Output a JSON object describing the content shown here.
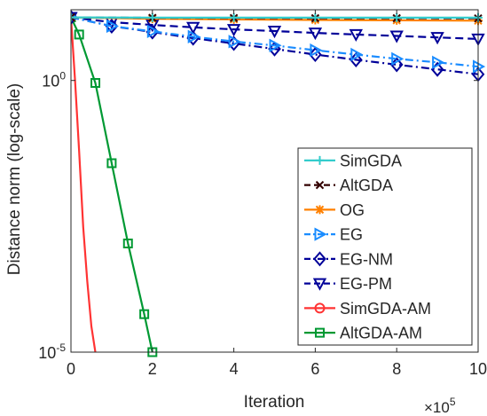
{
  "chart_data": {
    "type": "line",
    "title": "",
    "xlabel": "Iteration",
    "ylabel": "Distance norm (log-scale)",
    "x_exponent_label": "×10",
    "x_exponent_power": "5",
    "x_scale_factor": 100000,
    "xlim": [
      0,
      1000000
    ],
    "ylim": [
      1e-05,
      20
    ],
    "yscale": "log",
    "x_ticks": [
      {
        "value": 0,
        "label": "0"
      },
      {
        "value": 200000,
        "label": "2"
      },
      {
        "value": 400000,
        "label": "4"
      },
      {
        "value": 600000,
        "label": "6"
      },
      {
        "value": 800000,
        "label": "8"
      },
      {
        "value": 1000000,
        "label": "10"
      }
    ],
    "y_ticks": [
      {
        "value": 1,
        "base": "10",
        "power": "0"
      },
      {
        "value": 1e-05,
        "base": "10",
        "power": "-5"
      }
    ],
    "grid": false,
    "legend_position": "bottom-right",
    "series": [
      {
        "name": "SimGDA",
        "color": "#33cccc",
        "dash": "solid",
        "marker": "plus",
        "x": [
          0,
          200000,
          400000,
          600000,
          800000,
          1000000
        ],
        "y": [
          14.5,
          14.3,
          14.3,
          14.3,
          14.3,
          14.3
        ]
      },
      {
        "name": "AltGDA",
        "color": "#330000",
        "dash": "dashed",
        "marker": "x",
        "x": [
          0,
          200000,
          400000,
          600000,
          800000,
          1000000
        ],
        "y": [
          14.5,
          14.2,
          14.1,
          14.0,
          14.0,
          13.9
        ]
      },
      {
        "name": "OG",
        "color": "#ff8000",
        "dash": "solid",
        "marker": "asterisk",
        "x": [
          0,
          200000,
          400000,
          600000,
          800000,
          1000000
        ],
        "y": [
          14.5,
          13.7,
          13.3,
          13.0,
          12.8,
          12.6
        ]
      },
      {
        "name": "EG",
        "color": "#1a8cff",
        "dash": "dashdot",
        "marker": "triangle-right",
        "x": [
          0,
          100000,
          200000,
          300000,
          400000,
          500000,
          600000,
          700000,
          800000,
          900000,
          1000000
        ],
        "y": [
          14.5,
          10.0,
          8.0,
          6.4,
          5.2,
          4.4,
          3.6,
          3.0,
          2.5,
          2.15,
          1.8
        ]
      },
      {
        "name": "EG-NM",
        "color": "#000099",
        "dash": "dashdot",
        "marker": "diamond",
        "x": [
          0,
          100000,
          200000,
          300000,
          400000,
          500000,
          600000,
          700000,
          800000,
          900000,
          1000000
        ],
        "y": [
          14.5,
          10.0,
          7.8,
          6.0,
          4.8,
          3.8,
          3.0,
          2.4,
          1.95,
          1.6,
          1.3
        ]
      },
      {
        "name": "EG-PM",
        "color": "#000099",
        "dash": "dashed",
        "marker": "triangle-down",
        "x": [
          0,
          100000,
          200000,
          300000,
          400000,
          500000,
          600000,
          700000,
          800000,
          900000,
          1000000
        ],
        "y": [
          14.5,
          11.8,
          10.5,
          9.5,
          8.7,
          8.1,
          7.5,
          7.0,
          6.6,
          6.2,
          5.8
        ]
      },
      {
        "name": "SimGDA-AM",
        "color": "#ff3333",
        "dash": "solid",
        "marker": "circle",
        "x": [
          0,
          10000,
          20000,
          30000,
          40000,
          50000,
          60000
        ],
        "y": [
          14.5,
          1.0,
          0.05,
          0.002,
          0.0002,
          3e-05,
          1e-05
        ]
      },
      {
        "name": "AltGDA-AM",
        "color": "#009933",
        "dash": "solid",
        "marker": "square",
        "x": [
          0,
          20000,
          60000,
          100000,
          140000,
          180000,
          200000
        ],
        "y": [
          14.5,
          7.0,
          0.9,
          0.03,
          0.001,
          5e-05,
          1e-05
        ]
      }
    ]
  }
}
